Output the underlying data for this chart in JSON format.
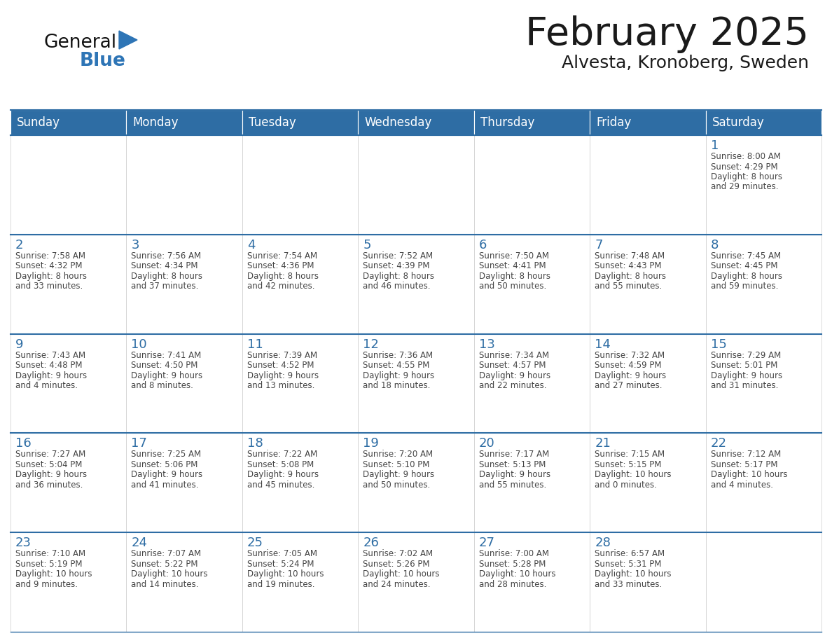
{
  "title": "February 2025",
  "subtitle": "Alvesta, Kronoberg, Sweden",
  "days_of_week": [
    "Sunday",
    "Monday",
    "Tuesday",
    "Wednesday",
    "Thursday",
    "Friday",
    "Saturday"
  ],
  "header_bg": "#2E6DA4",
  "header_text": "#FFFFFF",
  "cell_bg": "#FFFFFF",
  "row_border_color": "#2E6DA4",
  "day_num_color": "#2E6DA4",
  "info_color": "#444444",
  "title_color": "#1a1a1a",
  "logo_general_color": "#111111",
  "logo_blue_color": "#2E75B6",
  "calendar_data": [
    [
      null,
      null,
      null,
      null,
      null,
      null,
      {
        "day": 1,
        "sunrise": "8:00 AM",
        "sunset": "4:29 PM",
        "daylight": "8 hours and 29 minutes."
      }
    ],
    [
      {
        "day": 2,
        "sunrise": "7:58 AM",
        "sunset": "4:32 PM",
        "daylight": "8 hours and 33 minutes."
      },
      {
        "day": 3,
        "sunrise": "7:56 AM",
        "sunset": "4:34 PM",
        "daylight": "8 hours and 37 minutes."
      },
      {
        "day": 4,
        "sunrise": "7:54 AM",
        "sunset": "4:36 PM",
        "daylight": "8 hours and 42 minutes."
      },
      {
        "day": 5,
        "sunrise": "7:52 AM",
        "sunset": "4:39 PM",
        "daylight": "8 hours and 46 minutes."
      },
      {
        "day": 6,
        "sunrise": "7:50 AM",
        "sunset": "4:41 PM",
        "daylight": "8 hours and 50 minutes."
      },
      {
        "day": 7,
        "sunrise": "7:48 AM",
        "sunset": "4:43 PM",
        "daylight": "8 hours and 55 minutes."
      },
      {
        "day": 8,
        "sunrise": "7:45 AM",
        "sunset": "4:45 PM",
        "daylight": "8 hours and 59 minutes."
      }
    ],
    [
      {
        "day": 9,
        "sunrise": "7:43 AM",
        "sunset": "4:48 PM",
        "daylight": "9 hours and 4 minutes."
      },
      {
        "day": 10,
        "sunrise": "7:41 AM",
        "sunset": "4:50 PM",
        "daylight": "9 hours and 8 minutes."
      },
      {
        "day": 11,
        "sunrise": "7:39 AM",
        "sunset": "4:52 PM",
        "daylight": "9 hours and 13 minutes."
      },
      {
        "day": 12,
        "sunrise": "7:36 AM",
        "sunset": "4:55 PM",
        "daylight": "9 hours and 18 minutes."
      },
      {
        "day": 13,
        "sunrise": "7:34 AM",
        "sunset": "4:57 PM",
        "daylight": "9 hours and 22 minutes."
      },
      {
        "day": 14,
        "sunrise": "7:32 AM",
        "sunset": "4:59 PM",
        "daylight": "9 hours and 27 minutes."
      },
      {
        "day": 15,
        "sunrise": "7:29 AM",
        "sunset": "5:01 PM",
        "daylight": "9 hours and 31 minutes."
      }
    ],
    [
      {
        "day": 16,
        "sunrise": "7:27 AM",
        "sunset": "5:04 PM",
        "daylight": "9 hours and 36 minutes."
      },
      {
        "day": 17,
        "sunrise": "7:25 AM",
        "sunset": "5:06 PM",
        "daylight": "9 hours and 41 minutes."
      },
      {
        "day": 18,
        "sunrise": "7:22 AM",
        "sunset": "5:08 PM",
        "daylight": "9 hours and 45 minutes."
      },
      {
        "day": 19,
        "sunrise": "7:20 AM",
        "sunset": "5:10 PM",
        "daylight": "9 hours and 50 minutes."
      },
      {
        "day": 20,
        "sunrise": "7:17 AM",
        "sunset": "5:13 PM",
        "daylight": "9 hours and 55 minutes."
      },
      {
        "day": 21,
        "sunrise": "7:15 AM",
        "sunset": "5:15 PM",
        "daylight": "10 hours and 0 minutes."
      },
      {
        "day": 22,
        "sunrise": "7:12 AM",
        "sunset": "5:17 PM",
        "daylight": "10 hours and 4 minutes."
      }
    ],
    [
      {
        "day": 23,
        "sunrise": "7:10 AM",
        "sunset": "5:19 PM",
        "daylight": "10 hours and 9 minutes."
      },
      {
        "day": 24,
        "sunrise": "7:07 AM",
        "sunset": "5:22 PM",
        "daylight": "10 hours and 14 minutes."
      },
      {
        "day": 25,
        "sunrise": "7:05 AM",
        "sunset": "5:24 PM",
        "daylight": "10 hours and 19 minutes."
      },
      {
        "day": 26,
        "sunrise": "7:02 AM",
        "sunset": "5:26 PM",
        "daylight": "10 hours and 24 minutes."
      },
      {
        "day": 27,
        "sunrise": "7:00 AM",
        "sunset": "5:28 PM",
        "daylight": "10 hours and 28 minutes."
      },
      {
        "day": 28,
        "sunrise": "6:57 AM",
        "sunset": "5:31 PM",
        "daylight": "10 hours and 33 minutes."
      },
      null
    ]
  ]
}
